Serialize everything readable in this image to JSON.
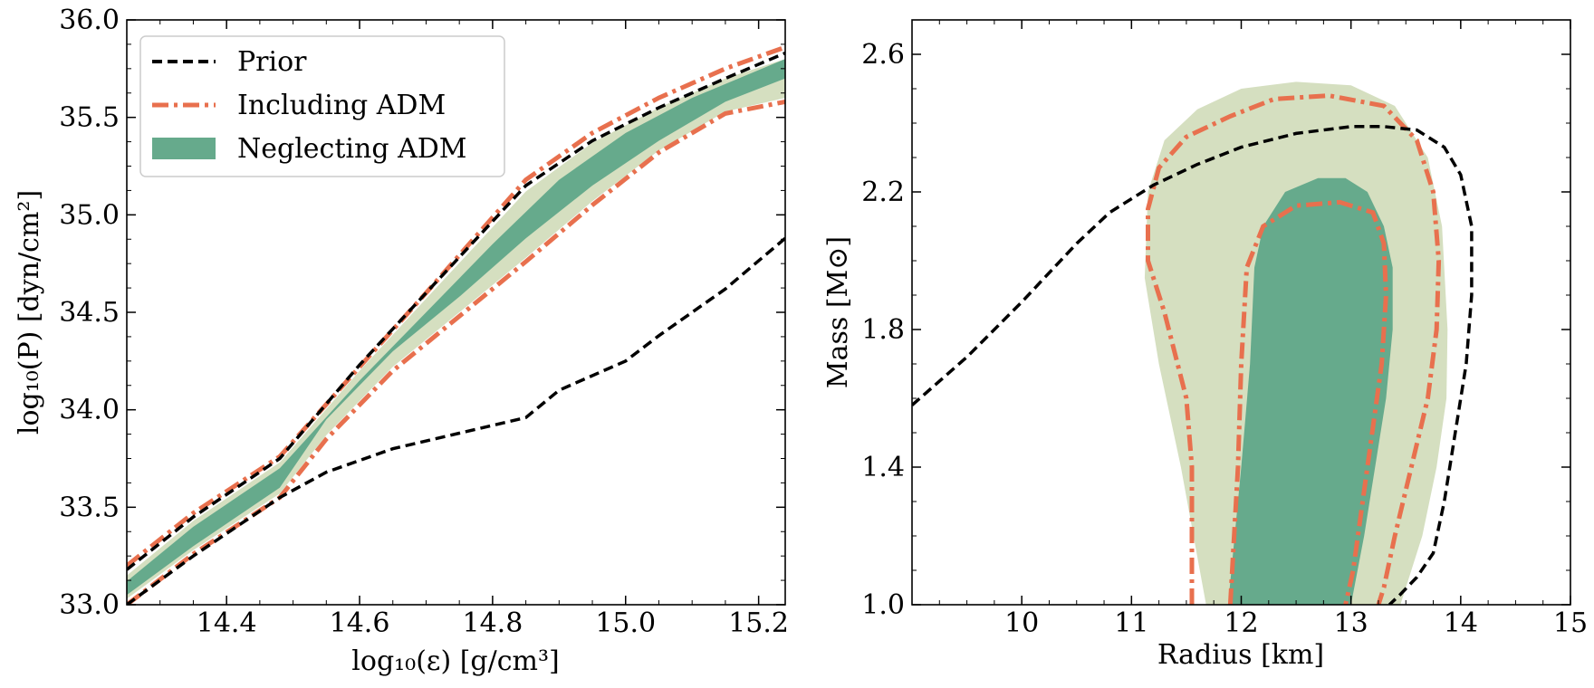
{
  "colors": {
    "prior": "#000000",
    "including_adm": "#E8704E",
    "neglect_inner": "#66AA8C",
    "neglect_outer": "#D5DFC0"
  },
  "chart_data": [
    {
      "type": "area",
      "xlabel": "log₁₀(ε) [g/cm³]",
      "ylabel": "log₁₀(P) [dyn/cm²]",
      "xlim": [
        14.25,
        15.24
      ],
      "ylim": [
        33.0,
        36.0
      ],
      "xticks": [
        "14.4",
        "14.6",
        "14.8",
        "15.0",
        "15.2"
      ],
      "xtick_values": [
        14.4,
        14.6,
        14.8,
        15.0,
        15.2
      ],
      "yticks": [
        "33.0",
        "33.5",
        "34.0",
        "34.5",
        "35.0",
        "35.5",
        "36.0"
      ],
      "ytick_values": [
        33.0,
        33.5,
        34.0,
        34.5,
        35.0,
        35.5,
        36.0
      ],
      "legend": {
        "placement": "top-left",
        "entries": [
          "Prior",
          "Including ADM",
          "Neglecting ADM"
        ]
      },
      "series": [
        {
          "name": "Prior",
          "style": "dashed",
          "upper": {
            "x": [
              14.25,
              14.35,
              14.48,
              14.6,
              14.7,
              14.85,
              14.95,
              15.05,
              15.15,
              15.24
            ],
            "y": [
              33.18,
              33.45,
              33.75,
              34.23,
              34.6,
              35.15,
              35.38,
              35.55,
              35.7,
              35.83
            ]
          },
          "lower": {
            "x": [
              14.25,
              14.35,
              14.48,
              14.55,
              14.65,
              14.75,
              14.85,
              14.9,
              15.0,
              15.05,
              15.15,
              15.24
            ],
            "y": [
              33.0,
              33.25,
              33.55,
              33.68,
              33.8,
              33.88,
              33.96,
              34.1,
              34.25,
              34.38,
              34.62,
              34.88
            ]
          }
        },
        {
          "name": "Including ADM",
          "style": "dashdot",
          "upper": {
            "x": [
              14.25,
              14.35,
              14.48,
              14.6,
              14.7,
              14.85,
              14.95,
              15.05,
              15.15,
              15.24
            ],
            "y": [
              33.2,
              33.47,
              33.76,
              34.22,
              34.6,
              35.18,
              35.42,
              35.6,
              35.75,
              35.86
            ]
          },
          "lower": {
            "x": [
              14.25,
              14.35,
              14.48,
              14.55,
              14.65,
              14.75,
              14.85,
              14.95,
              15.05,
              15.15,
              15.24
            ],
            "y": [
              33.0,
              33.26,
              33.55,
              33.85,
              34.2,
              34.48,
              34.76,
              35.05,
              35.32,
              35.52,
              35.58
            ]
          }
        },
        {
          "name": "Neglecting ADM (outer)",
          "style": "fill",
          "upper": {
            "x": [
              14.25,
              14.35,
              14.48,
              14.6,
              14.7,
              14.85,
              14.95,
              15.05,
              15.15,
              15.24
            ],
            "y": [
              33.15,
              33.43,
              33.73,
              34.2,
              34.57,
              35.12,
              35.37,
              35.55,
              35.7,
              35.8
            ]
          },
          "lower": {
            "x": [
              14.25,
              14.35,
              14.48,
              14.55,
              14.65,
              14.75,
              14.85,
              14.95,
              15.05,
              15.15,
              15.24
            ],
            "y": [
              33.03,
              33.28,
              33.57,
              33.87,
              34.22,
              34.5,
              34.78,
              35.07,
              35.33,
              35.53,
              35.6
            ]
          }
        },
        {
          "name": "Neglecting ADM (inner)",
          "style": "fill",
          "upper": {
            "x": [
              14.25,
              14.35,
              14.48,
              14.6,
              14.7,
              14.8,
              14.9,
              15.0,
              15.1,
              15.24
            ],
            "y": [
              33.12,
              33.4,
              33.7,
              34.15,
              34.5,
              34.85,
              35.18,
              35.42,
              35.6,
              35.8
            ]
          },
          "lower": {
            "x": [
              14.25,
              14.35,
              14.48,
              14.55,
              14.65,
              14.75,
              14.85,
              14.95,
              15.05,
              15.15,
              15.24
            ],
            "y": [
              33.05,
              33.3,
              33.6,
              33.95,
              34.3,
              34.58,
              34.88,
              35.15,
              35.38,
              35.58,
              35.7
            ]
          }
        }
      ]
    },
    {
      "type": "area",
      "xlabel": "Radius [km]",
      "ylabel": "Mass [M⊙]",
      "xlim": [
        9.0,
        15.0
      ],
      "ylim": [
        1.0,
        2.7
      ],
      "xticks": [
        "10",
        "11",
        "12",
        "13",
        "14",
        "15"
      ],
      "xtick_values": [
        10,
        11,
        12,
        13,
        14,
        15
      ],
      "yticks": [
        "1.0",
        "1.4",
        "1.8",
        "2.2",
        "2.6"
      ],
      "ytick_values": [
        1.0,
        1.4,
        1.8,
        2.2,
        2.6
      ],
      "series": [
        {
          "name": "Neglecting ADM (outer)",
          "style": "fill",
          "polygon": {
            "x": [
              11.68,
              11.45,
              11.25,
              11.12,
              11.15,
              11.3,
              11.6,
              12.0,
              12.5,
              13.0,
              13.4,
              13.7,
              13.83,
              13.88,
              13.87,
              13.78,
              13.65,
              13.5,
              13.45
            ],
            "y": [
              1.0,
              1.4,
              1.7,
              1.95,
              2.2,
              2.35,
              2.44,
              2.5,
              2.52,
              2.51,
              2.45,
              2.3,
              2.1,
              1.8,
              1.6,
              1.4,
              1.2,
              1.05,
              1.0
            ]
          }
        },
        {
          "name": "Neglecting ADM (inner)",
          "style": "fill",
          "polygon": {
            "x": [
              11.88,
              12.0,
              12.08,
              12.12,
              12.2,
              12.4,
              12.7,
              12.95,
              13.15,
              13.3,
              13.38,
              13.38,
              13.32,
              13.22,
              13.12,
              13.0
            ],
            "y": [
              1.0,
              1.4,
              1.7,
              1.98,
              2.1,
              2.2,
              2.24,
              2.24,
              2.2,
              2.1,
              1.98,
              1.8,
              1.6,
              1.4,
              1.2,
              1.0
            ]
          }
        },
        {
          "name": "Including ADM (outer)",
          "style": "dashdot",
          "polygon": {
            "x": [
              11.55,
              11.55,
              11.5,
              11.3,
              11.15,
              11.15,
              11.25,
              11.5,
              11.9,
              12.3,
              12.8,
              13.3,
              13.6,
              13.75,
              13.8,
              13.78,
              13.7,
              13.55,
              13.4,
              13.3,
              13.25
            ],
            "y": [
              1.0,
              1.4,
              1.6,
              1.85,
              2.0,
              2.15,
              2.27,
              2.36,
              2.42,
              2.47,
              2.48,
              2.45,
              2.35,
              2.2,
              2.0,
              1.8,
              1.6,
              1.4,
              1.2,
              1.05,
              1.0
            ]
          }
        },
        {
          "name": "Including ADM (inner)",
          "style": "dashdot",
          "polygon": {
            "x": [
              11.9,
              11.97,
              12.0,
              12.05,
              12.2,
              12.5,
              12.9,
              13.2,
              13.3,
              13.32,
              13.28,
              13.15,
              13.02,
              12.95
            ],
            "y": [
              1.0,
              1.4,
              1.7,
              1.98,
              2.1,
              2.16,
              2.17,
              2.14,
              2.05,
              1.9,
              1.7,
              1.4,
              1.1,
              1.0
            ]
          }
        },
        {
          "name": "Prior",
          "style": "dashed",
          "line": {
            "x": [
              9.0,
              9.5,
              10.0,
              10.5,
              10.8,
              11.2,
              11.6,
              12.0,
              12.5,
              13.0,
              13.3,
              13.6,
              13.85,
              14.0,
              14.1,
              14.1,
              14.05,
              13.95,
              13.85,
              13.75,
              13.6,
              13.45,
              13.35
            ],
            "y": [
              1.58,
              1.72,
              1.88,
              2.05,
              2.14,
              2.22,
              2.28,
              2.33,
              2.37,
              2.39,
              2.39,
              2.38,
              2.33,
              2.25,
              2.1,
              1.9,
              1.7,
              1.5,
              1.3,
              1.15,
              1.08,
              1.03,
              1.0
            ]
          }
        }
      ]
    }
  ]
}
